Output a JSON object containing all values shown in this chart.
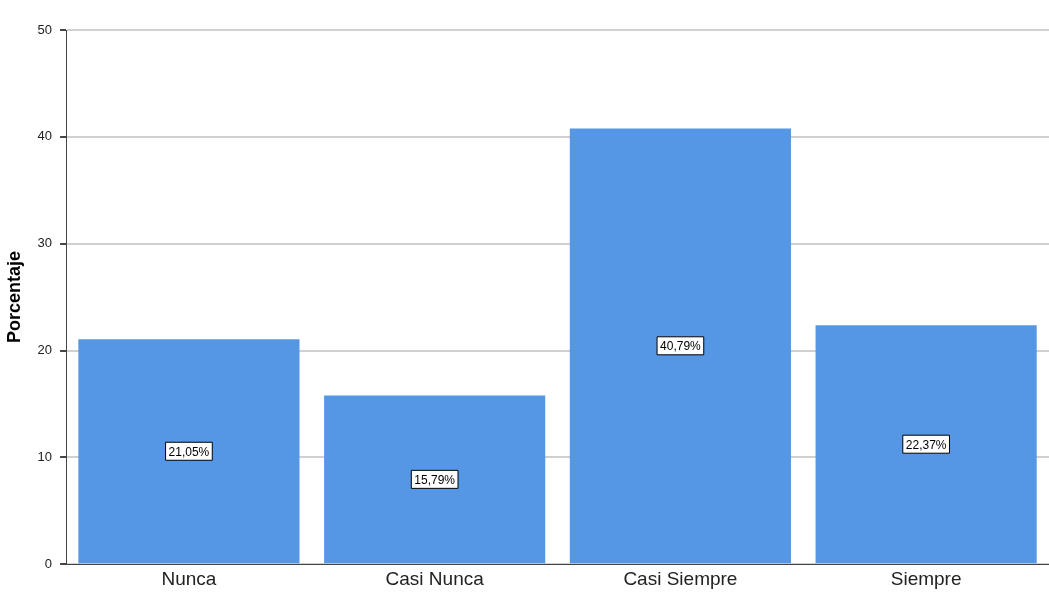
{
  "chart_data": {
    "type": "bar",
    "ylabel": "Porcentaje",
    "categories": [
      "Nunca",
      "Casi Nunca",
      "Casi Siempre",
      "Siempre"
    ],
    "values": [
      21.05,
      15.79,
      40.79,
      22.37
    ],
    "color": "#5597e4",
    "value_labels": [
      "21,05%",
      "15,79%",
      "40,79%",
      "22,37%"
    ],
    "ylim": [
      0,
      50
    ],
    "yticks": [
      0,
      10,
      20,
      30,
      40,
      50
    ],
    "grid": "y",
    "legend": false
  }
}
